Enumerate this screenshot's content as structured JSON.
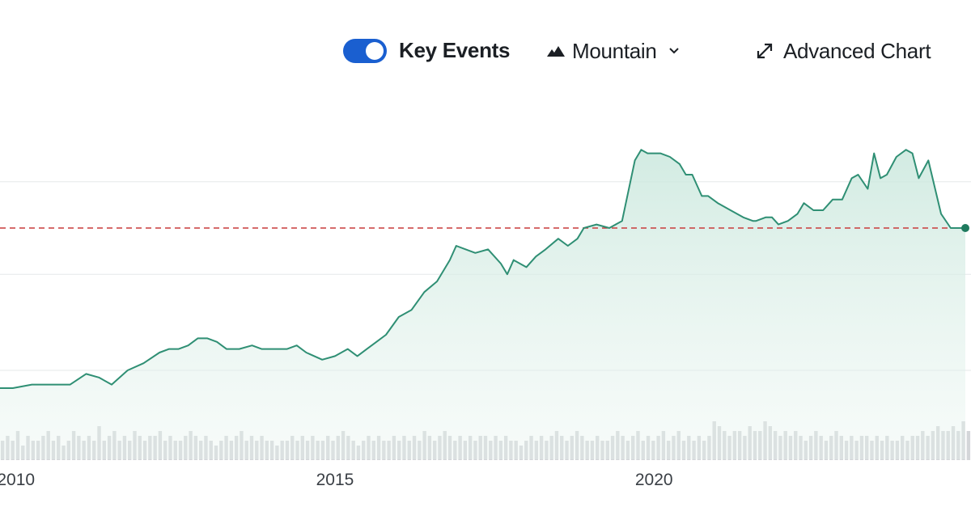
{
  "toolbar": {
    "key_events_label": "Key Events",
    "key_events_on": true,
    "chart_type_label": "Mountain",
    "advanced_chart_label": "Advanced Chart",
    "toggle_color": "#1a5fd0"
  },
  "icons": {
    "chart_type": "mountain-icon",
    "dropdown": "chevron-down-icon",
    "advanced": "expand-arrows-icon"
  },
  "colors": {
    "line": "#2f8f74",
    "fill_top": "#cde9df",
    "reference_line": "#c93a3a",
    "volume": "#d4d6d9",
    "grid": "#e6e8ea"
  },
  "chart_data": {
    "type": "area",
    "x_ticks": [
      "2010",
      "2015",
      "2020"
    ],
    "x_tick_values": [
      2010,
      2015,
      2020
    ],
    "xlim": [
      2009.75,
      2024.88
    ],
    "ylim": [
      0,
      100
    ],
    "grid": true,
    "reference_value": 65,
    "last_value": 65,
    "series": [
      {
        "x": [
          2009.75,
          2009.95,
          2010.25,
          2010.55,
          2010.85,
          2011.1,
          2011.3,
          2011.5,
          2011.75,
          2012.0,
          2012.25,
          2012.4,
          2012.55,
          2012.7,
          2012.85,
          2013.0,
          2013.15,
          2013.3,
          2013.5,
          2013.7,
          2013.85,
          2014.0,
          2014.25,
          2014.4,
          2014.55,
          2014.8,
          2015.0,
          2015.2,
          2015.35,
          2015.5,
          2015.65,
          2015.8,
          2016.0,
          2016.2,
          2016.4,
          2016.6,
          2016.8,
          2016.9,
          2017.05,
          2017.2,
          2017.4,
          2017.6,
          2017.7,
          2017.8,
          2018.0,
          2018.15,
          2018.3,
          2018.5,
          2018.65,
          2018.8,
          2018.9,
          2019.1,
          2019.3,
          2019.5,
          2019.7,
          2019.8,
          2019.9,
          2020.0,
          2020.1,
          2020.25,
          2020.4,
          2020.5,
          2020.6,
          2020.75,
          2020.85,
          2021.0,
          2021.2,
          2021.4,
          2021.55,
          2021.6,
          2021.75,
          2021.85,
          2021.95,
          2022.1,
          2022.25,
          2022.35,
          2022.5,
          2022.65,
          2022.8,
          2022.95,
          2023.1,
          2023.2,
          2023.35,
          2023.45,
          2023.55,
          2023.65,
          2023.8,
          2023.95,
          2024.05,
          2024.15,
          2024.3,
          2024.5,
          2024.65,
          2024.88
        ],
        "y": [
          20,
          20,
          21,
          21,
          21,
          24,
          23,
          21,
          25,
          27,
          30,
          31,
          31,
          32,
          34,
          34,
          33,
          31,
          31,
          32,
          31,
          31,
          31,
          32,
          30,
          28,
          29,
          31,
          29,
          31,
          33,
          35,
          40,
          42,
          47,
          50,
          56,
          60,
          59,
          58,
          59,
          55,
          52,
          56,
          54,
          57,
          59,
          62,
          60,
          62,
          65,
          66,
          65,
          67,
          84,
          87,
          86,
          86,
          86,
          85,
          83,
          80,
          80,
          74,
          74,
          72,
          70,
          68,
          67,
          67,
          68,
          68,
          66,
          67,
          69,
          72,
          70,
          70,
          73,
          73,
          79,
          80,
          76,
          86,
          79,
          80,
          85,
          87,
          86,
          79,
          84,
          69,
          65,
          65
        ]
      }
    ],
    "volume": [
      4,
      5,
      4,
      6,
      3,
      5,
      4,
      4,
      5,
      6,
      4,
      5,
      3,
      4,
      6,
      5,
      4,
      5,
      4,
      7,
      4,
      5,
      6,
      4,
      5,
      4,
      6,
      5,
      4,
      5,
      5,
      6,
      4,
      5,
      4,
      4,
      5,
      6,
      5,
      4,
      5,
      4,
      3,
      4,
      5,
      4,
      5,
      6,
      4,
      5,
      4,
      5,
      4,
      4,
      3,
      4,
      4,
      5,
      4,
      5,
      4,
      5,
      4,
      4,
      5,
      4,
      5,
      6,
      5,
      4,
      3,
      4,
      5,
      4,
      5,
      4,
      4,
      5,
      4,
      5,
      4,
      5,
      4,
      6,
      5,
      4,
      5,
      6,
      5,
      4,
      5,
      4,
      5,
      4,
      5,
      5,
      4,
      5,
      4,
      5,
      4,
      4,
      3,
      4,
      5,
      4,
      5,
      4,
      5,
      6,
      5,
      4,
      5,
      6,
      5,
      4,
      4,
      5,
      4,
      4,
      5,
      6,
      5,
      4,
      5,
      6,
      4,
      5,
      4,
      5,
      6,
      4,
      5,
      6,
      4,
      5,
      4,
      5,
      4,
      5,
      8,
      7,
      6,
      5,
      6,
      6,
      5,
      7,
      6,
      6,
      8,
      7,
      6,
      5,
      6,
      5,
      6,
      5,
      4,
      5,
      6,
      5,
      4,
      5,
      6,
      5,
      4,
      5,
      4,
      5,
      5,
      4,
      5,
      4,
      5,
      4,
      4,
      5,
      4,
      5,
      5,
      6,
      5,
      6,
      7,
      6,
      6,
      7,
      6,
      8,
      6
    ]
  }
}
